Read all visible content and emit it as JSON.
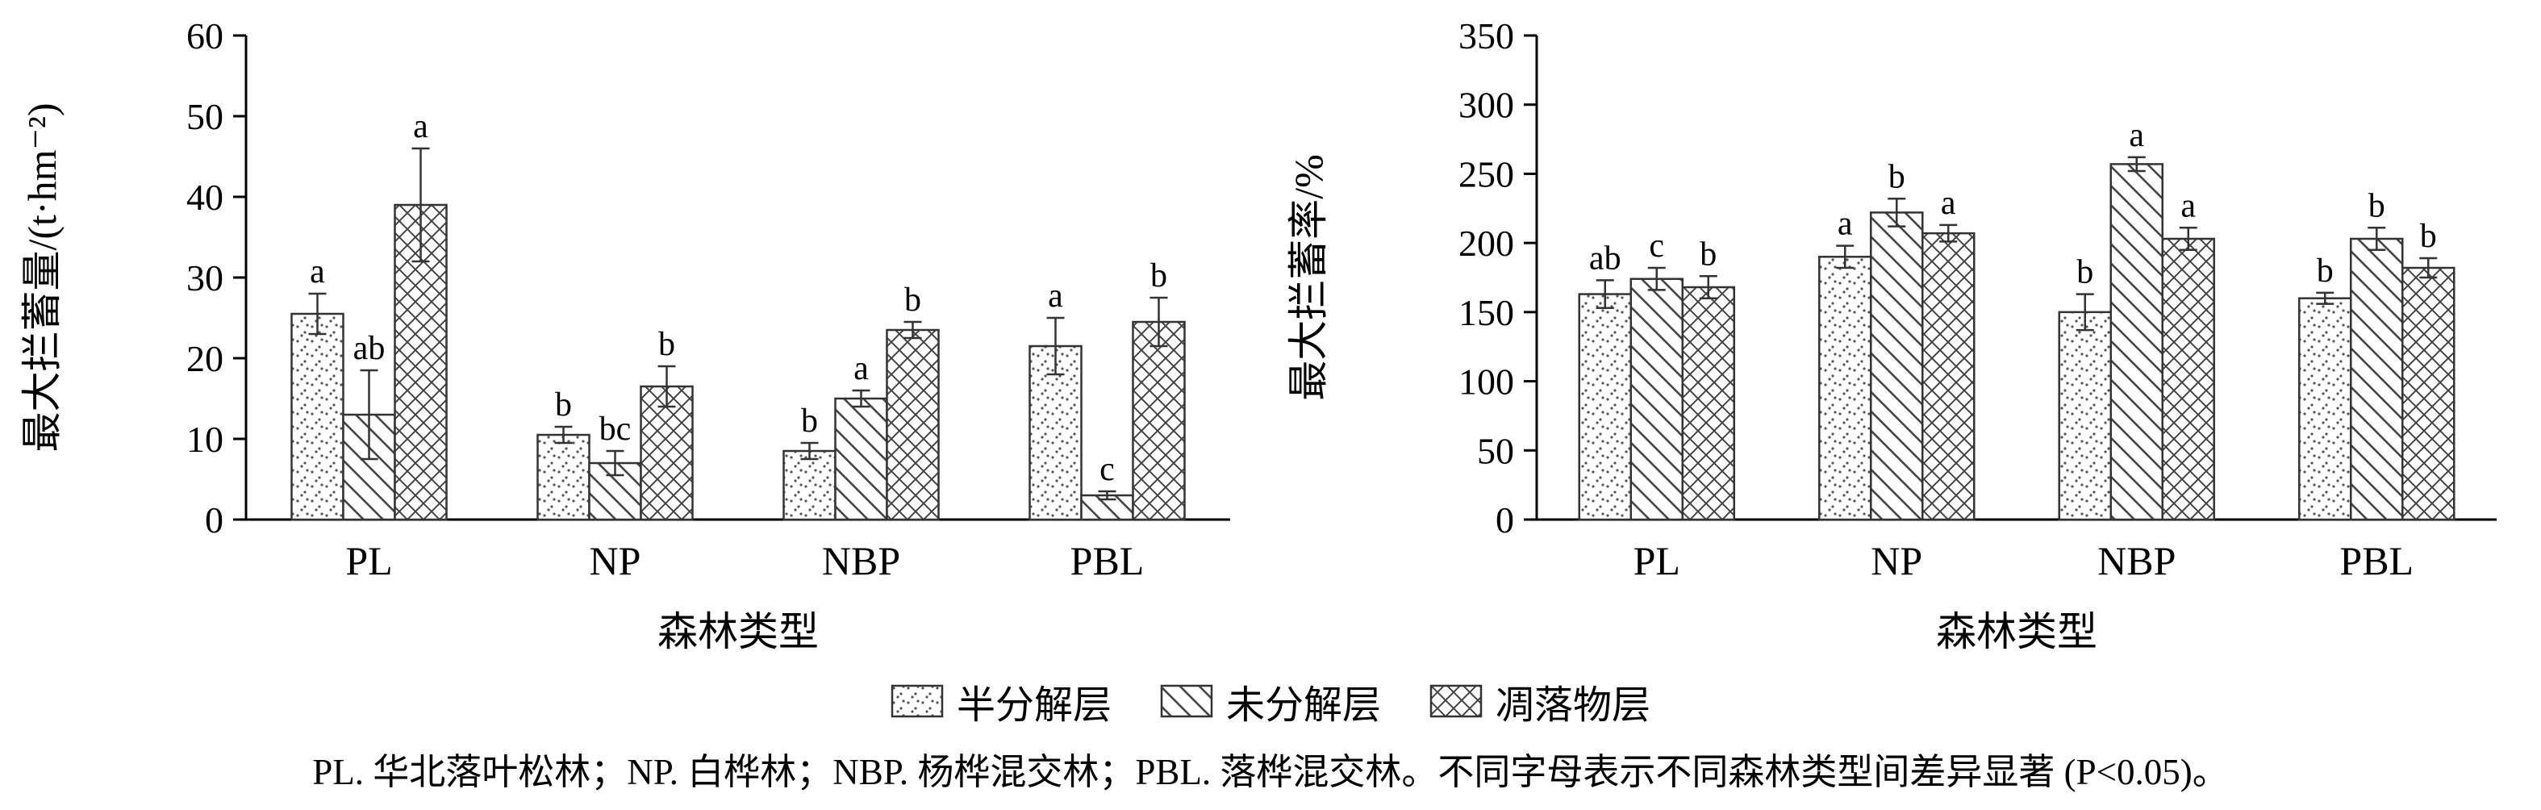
{
  "caption": "PL. 华北落叶松林；NP. 白桦林；NBP. 杨桦混交林；PBL. 落桦混交林。不同字母表示不同森林类型间差异显著 (P<0.05)。",
  "legend": {
    "items": [
      {
        "label": "半分解层",
        "pattern": "dots"
      },
      {
        "label": "未分解层",
        "pattern": "diagonal"
      },
      {
        "label": "凋落物层",
        "pattern": "crosshatch"
      }
    ]
  },
  "colors": {
    "axis": "#000000",
    "bar_outline": "#333333",
    "hatch": "#444444"
  },
  "chart_data": [
    {
      "type": "bar",
      "title": "",
      "xlabel": "森林类型",
      "ylabel": "最大拦蓄量/(t·hm⁻²)",
      "ylim": [
        0,
        60
      ],
      "ytick_step": 10,
      "grid": false,
      "legend_position": "shared-bottom",
      "categories": [
        "PL",
        "NP",
        "NBP",
        "PBL"
      ],
      "series": [
        {
          "name": "半分解层",
          "pattern": "dots",
          "values": [
            25.5,
            10.5,
            8.5,
            21.5
          ],
          "errors": [
            2.5,
            1.0,
            1.0,
            3.5
          ],
          "letters": [
            "a",
            "b",
            "b",
            "a"
          ]
        },
        {
          "name": "未分解层",
          "pattern": "diagonal",
          "values": [
            13.0,
            7.0,
            15.0,
            3.0
          ],
          "errors": [
            5.5,
            1.5,
            1.0,
            0.5
          ],
          "letters": [
            "ab",
            "bc",
            "a",
            "c"
          ]
        },
        {
          "name": "凋落物层",
          "pattern": "crosshatch",
          "values": [
            39.0,
            16.5,
            23.5,
            24.5
          ],
          "errors": [
            7.0,
            2.5,
            1.0,
            3.0
          ],
          "letters": [
            "a",
            "b",
            "b",
            "b"
          ]
        }
      ]
    },
    {
      "type": "bar",
      "title": "",
      "xlabel": "森林类型",
      "ylabel": "最大拦蓄率/%",
      "ylim": [
        0,
        350
      ],
      "ytick_step": 50,
      "grid": false,
      "legend_position": "shared-bottom",
      "categories": [
        "PL",
        "NP",
        "NBP",
        "PBL"
      ],
      "series": [
        {
          "name": "半分解层",
          "pattern": "dots",
          "values": [
            163,
            190,
            150,
            160
          ],
          "errors": [
            10,
            8,
            13,
            4
          ],
          "letters": [
            "ab",
            "a",
            "b",
            "b"
          ]
        },
        {
          "name": "未分解层",
          "pattern": "diagonal",
          "values": [
            174,
            222,
            257,
            203
          ],
          "errors": [
            8,
            10,
            5,
            8
          ],
          "letters": [
            "c",
            "b",
            "a",
            "b"
          ]
        },
        {
          "name": "凋落物层",
          "pattern": "crosshatch",
          "values": [
            168,
            207,
            203,
            182
          ],
          "errors": [
            8,
            6,
            8,
            7
          ],
          "letters": [
            "b",
            "a",
            "a",
            "b"
          ]
        }
      ]
    }
  ]
}
